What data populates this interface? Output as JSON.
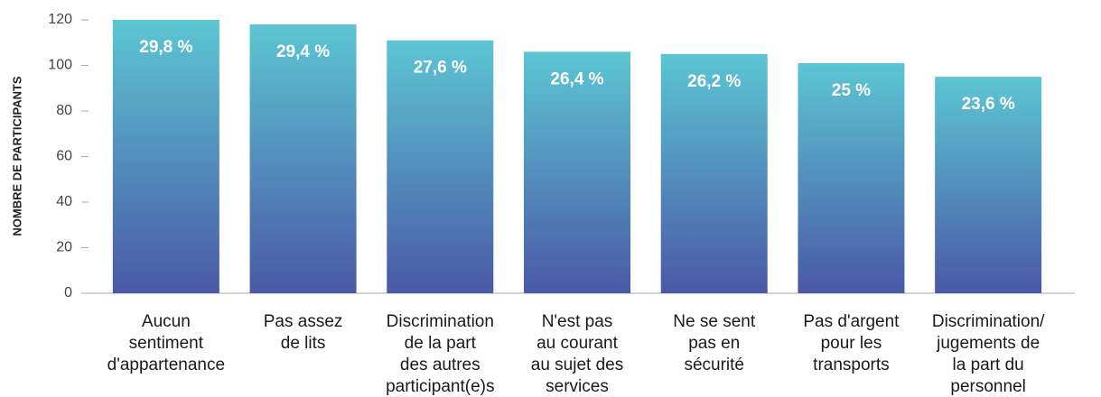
{
  "chart_data": {
    "type": "bar",
    "ylabel": "NOMBRE DE PARTICIPANTS",
    "categories": [
      [
        "Aucun",
        "sentiment",
        "d'appartenance"
      ],
      [
        "Pas assez",
        "de lits"
      ],
      [
        "Discrimination",
        "de la part",
        "des autres",
        "participant(e)s"
      ],
      [
        "N'est pas",
        "au courant",
        "au sujet des",
        "services"
      ],
      [
        "Ne se sent",
        "pas en",
        "sécurité"
      ],
      [
        "Pas d'argent",
        "pour les",
        "transports"
      ],
      [
        "Discrimination/",
        "jugements de",
        "la part du",
        "personnel"
      ]
    ],
    "values": [
      120,
      118,
      111,
      106,
      105,
      101,
      95
    ],
    "percentages": [
      29.8,
      29.4,
      27.6,
      26.4,
      26.2,
      25,
      23.6
    ],
    "percentage_labels": [
      "29,8 %",
      "29,4 %",
      "27,6 %",
      "26,4 %",
      "26,2 %",
      "25 %",
      "23,6 %"
    ],
    "color": [
      "#5cc6d3",
      "#4a58a6"
    ],
    "ylim": [
      0,
      120
    ],
    "yticks": [
      0,
      20,
      40,
      60,
      80,
      100,
      120
    ],
    "grid": false
  }
}
